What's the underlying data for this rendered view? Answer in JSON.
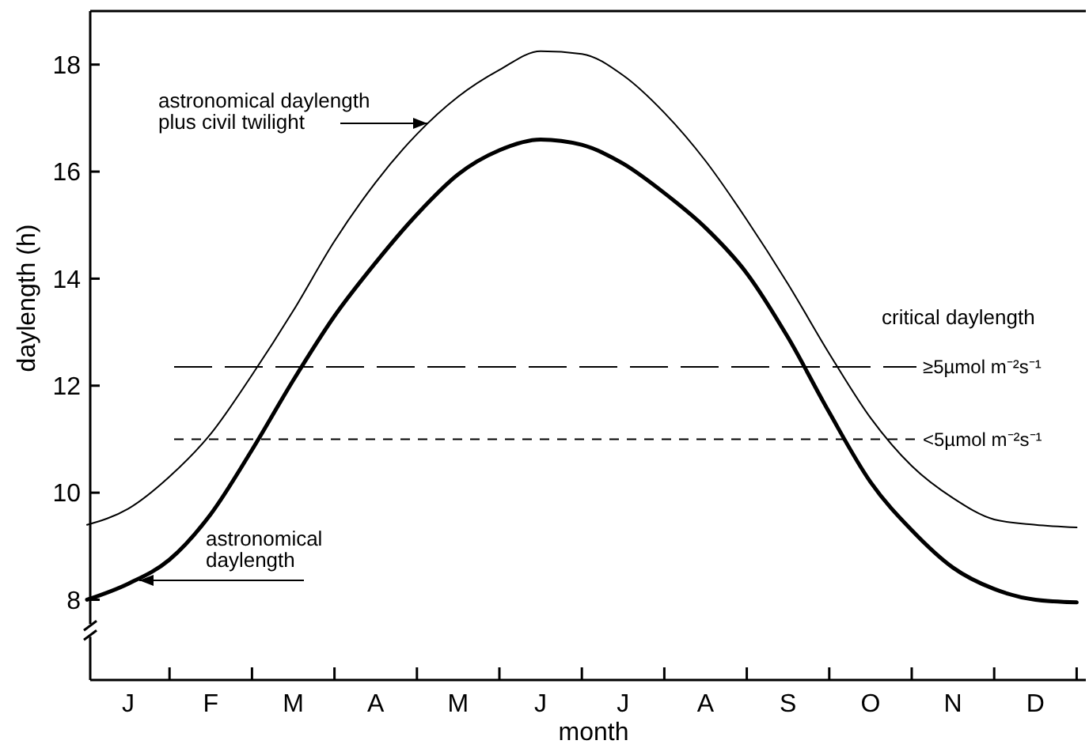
{
  "chart_data": {
    "type": "line",
    "xlabel": "month",
    "ylabel": "daylength (h)",
    "ylim": [
      6.5,
      19
    ],
    "categories": [
      null,
      "J",
      null,
      "F",
      null,
      "M",
      null,
      "A",
      null,
      "M",
      null,
      "J",
      null,
      "J",
      null,
      "A",
      null,
      "S",
      null,
      "O",
      null,
      "N",
      null,
      "D",
      null
    ],
    "yticks": [
      8,
      10,
      12,
      14,
      16,
      18
    ],
    "grid": false,
    "series": [
      {
        "name": "astronomical daylength plus civil twilight",
        "color": "#000000",
        "values": [
          9.4,
          9.7,
          10.3,
          11.1,
          12.2,
          13.4,
          14.7,
          15.8,
          16.7,
          17.4,
          17.9,
          18.25,
          18.2,
          17.8,
          17.1,
          16.2,
          15.1,
          13.9,
          12.6,
          11.4,
          10.5,
          9.9,
          9.5,
          9.4,
          9.35
        ]
      },
      {
        "name": "astronomical daylength",
        "color": "#000000",
        "values": [
          8.0,
          8.3,
          8.75,
          9.6,
          10.8,
          12.1,
          13.3,
          14.3,
          15.2,
          15.95,
          16.4,
          16.6,
          16.5,
          16.15,
          15.6,
          14.95,
          14.1,
          12.9,
          11.5,
          10.2,
          9.3,
          8.6,
          8.2,
          8.0,
          7.95
        ]
      }
    ],
    "ref_lines": [
      {
        "axis": "y",
        "value": 12.35,
        "label": "≥5µmol m⁻²s⁻¹",
        "line_style": "dashed"
      },
      {
        "axis": "y",
        "value": 11.0,
        "label": "<5µmol m⁻²s⁻¹",
        "line_style": "dotted"
      }
    ],
    "annotations": [
      "critical daylength"
    ]
  }
}
